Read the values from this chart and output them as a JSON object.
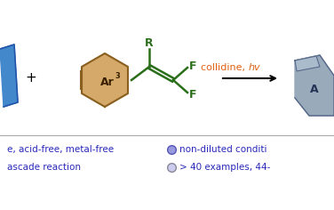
{
  "bg_color": "#ffffff",
  "arrow_color": "#000000",
  "plus_color": "#000000",
  "collidine_color": "#e06010",
  "structure_color": "#2a6e1a",
  "ring_fill_color": "#d4a96a",
  "ring_edge_color": "#8a6020",
  "blue_text_color": "#2828bb",
  "bullet_fill_1": "#9999dd",
  "bullet_edge_1": "#5555bb",
  "bullet_fill_2": "#ccccee",
  "bullet_edge_2": "#888899",
  "product_fill": "#99aabb",
  "product_edge": "#556688",
  "product_fill2": "#aabbcc",
  "left_shape_fill": "#4488cc",
  "left_shape_edge": "#2255aa",
  "text_bottom_left_1": "e, acid-free, metal-free",
  "text_bottom_left_2": "ascade reaction",
  "text_bottom_right_1": "non-diluted conditi",
  "text_bottom_right_2": "> 40 examples, 44-",
  "collidine_text": "collidine, ",
  "hv_text": "hv",
  "label_R": "R",
  "label_F1": "F",
  "label_F2": "F",
  "label_Ar3": "Ar",
  "figsize": [
    3.76,
    2.36
  ],
  "dpi": 100
}
